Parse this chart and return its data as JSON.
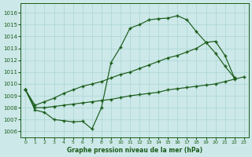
{
  "xlabel": "Graphe pression niveau de la mer (hPa)",
  "bg_color": "#cce8e8",
  "grid_color": "#aad4d4",
  "line_color": "#1a5c1a",
  "ylim": [
    1005.5,
    1016.8
  ],
  "xlim": [
    -0.5,
    23.5
  ],
  "yticks": [
    1006,
    1007,
    1008,
    1009,
    1010,
    1011,
    1012,
    1013,
    1014,
    1015,
    1016
  ],
  "xticks": [
    0,
    1,
    2,
    3,
    4,
    5,
    6,
    7,
    8,
    9,
    10,
    11,
    12,
    13,
    14,
    15,
    16,
    17,
    18,
    19,
    20,
    21,
    22,
    23
  ],
  "series1_x": [
    0,
    1,
    2,
    3,
    4,
    5,
    6,
    7,
    8,
    9,
    10,
    11,
    12,
    13,
    14,
    15,
    16,
    17,
    18,
    19,
    20,
    21,
    22
  ],
  "series1_y": [
    1009.5,
    1007.8,
    1007.6,
    1007.0,
    1006.9,
    1006.8,
    1006.85,
    1006.2,
    1008.0,
    1011.8,
    1013.1,
    1014.7,
    1015.0,
    1015.4,
    1015.5,
    1015.55,
    1015.75,
    1015.4,
    1014.4,
    1013.5,
    1012.6,
    1011.5,
    1010.5
  ],
  "series2_x": [
    0,
    1,
    2,
    3,
    4,
    5,
    6,
    7,
    8,
    9,
    10,
    11,
    12,
    13,
    14,
    15,
    16,
    17,
    18,
    19,
    20,
    21,
    22
  ],
  "series2_y": [
    1009.5,
    1008.2,
    1008.5,
    1008.8,
    1009.2,
    1009.5,
    1009.8,
    1010.0,
    1010.2,
    1010.5,
    1010.8,
    1011.0,
    1011.3,
    1011.6,
    1011.9,
    1012.2,
    1012.4,
    1012.7,
    1013.0,
    1013.5,
    1013.6,
    1012.4,
    1010.5
  ],
  "series3_x": [
    0,
    1,
    2,
    3,
    4,
    5,
    6,
    7,
    8,
    9,
    10,
    11,
    12,
    13,
    14,
    15,
    16,
    17,
    18,
    19,
    20,
    21,
    22,
    23
  ],
  "series3_y": [
    1009.5,
    1008.0,
    1008.0,
    1008.1,
    1008.2,
    1008.3,
    1008.4,
    1008.5,
    1008.6,
    1008.7,
    1008.85,
    1009.0,
    1009.1,
    1009.2,
    1009.3,
    1009.5,
    1009.6,
    1009.7,
    1009.8,
    1009.9,
    1010.0,
    1010.2,
    1010.4,
    1010.6
  ]
}
